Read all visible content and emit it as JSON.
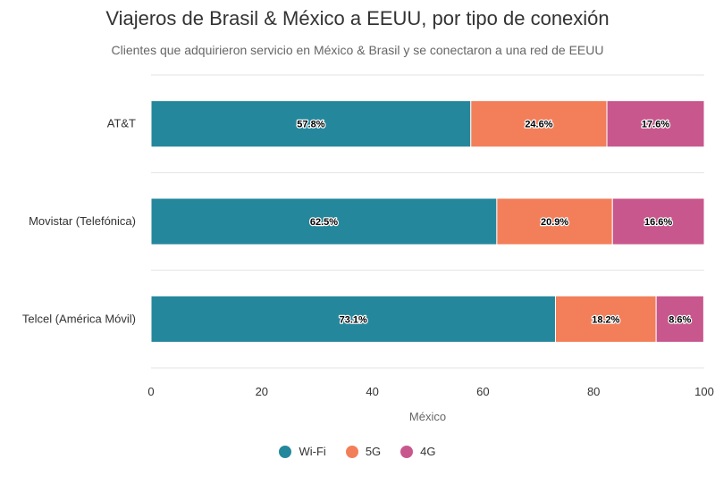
{
  "chart_data": {
    "type": "bar",
    "orientation": "horizontal",
    "stacked": true,
    "title": "Viajeros de Brasil & México a EEUU, por tipo de conexión",
    "subtitle": "Clientes que adquirieron servicio en México & Brasil y se conectaron a una red de EEUU",
    "xlabel": "México",
    "ylabel": "",
    "xlim": [
      0,
      100
    ],
    "xticks": [
      0,
      20,
      40,
      60,
      80,
      100
    ],
    "grid": true,
    "legend_position": "bottom",
    "categories": [
      "AT&T",
      "Movistar (Telefónica)",
      "Telcel (América Móvil)"
    ],
    "series": [
      {
        "name": "Wi-Fi",
        "color": "#25879C",
        "values": [
          57.8,
          62.5,
          73.1
        ],
        "labels": [
          "57.8%",
          "62.5%",
          "73.1%"
        ]
      },
      {
        "name": "5G",
        "color": "#F27F5A",
        "values": [
          24.6,
          20.9,
          18.2
        ],
        "labels": [
          "24.6%",
          "20.9%",
          "18.2%"
        ]
      },
      {
        "name": "4G",
        "color": "#C8578D",
        "values": [
          17.6,
          16.6,
          8.6
        ],
        "labels": [
          "17.6%",
          "16.6%",
          "8.6%"
        ]
      }
    ]
  }
}
